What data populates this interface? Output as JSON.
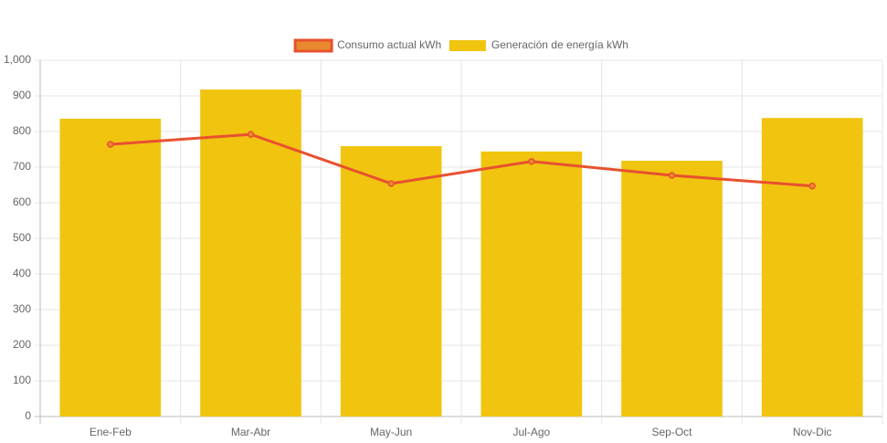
{
  "chart_data": {
    "type": "combo",
    "categories": [
      "Ene-Feb",
      "Mar-Abr",
      "May-Jun",
      "Jul-Ago",
      "Sep-Oct",
      "Nov-Dic"
    ],
    "series": [
      {
        "name": "Consumo actual kWh",
        "type": "line",
        "color": "#e8512f",
        "legend_fill": "#e88a2d",
        "values": [
          764,
          792,
          654,
          716,
          677,
          647
        ]
      },
      {
        "name": "Generación de energía kWh",
        "type": "bar",
        "color": "#f1c40f",
        "values": [
          836,
          918,
          759,
          744,
          718,
          838
        ]
      }
    ],
    "ylim": [
      0,
      1000
    ],
    "yticks": [
      0,
      100,
      200,
      300,
      400,
      500,
      600,
      700,
      800,
      900,
      {
        "value": 1000,
        "label": "1,000"
      }
    ],
    "grid": true,
    "legend": "top"
  }
}
